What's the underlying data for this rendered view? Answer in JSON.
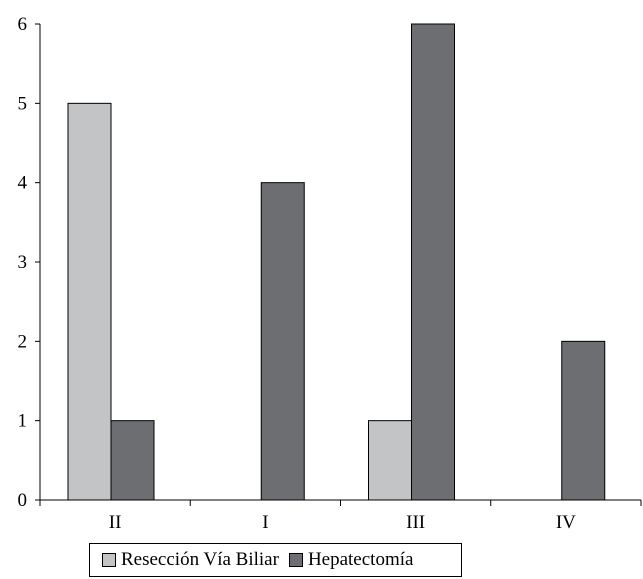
{
  "chart_data": {
    "type": "bar",
    "categories": [
      "II",
      "I",
      "III",
      "IV"
    ],
    "series": [
      {
        "name": "Resección Vía Biliar",
        "values": [
          5,
          0,
          1,
          0
        ],
        "color": "#c3c4c6"
      },
      {
        "name": "Hepatectomía",
        "values": [
          1,
          4,
          6,
          2
        ],
        "color": "#6d6e71"
      }
    ],
    "ylim": [
      0,
      6
    ],
    "yticks": [
      "0",
      "1",
      "2",
      "3",
      "4",
      "5",
      "6"
    ],
    "grid": false,
    "legend_position": "bottom"
  }
}
